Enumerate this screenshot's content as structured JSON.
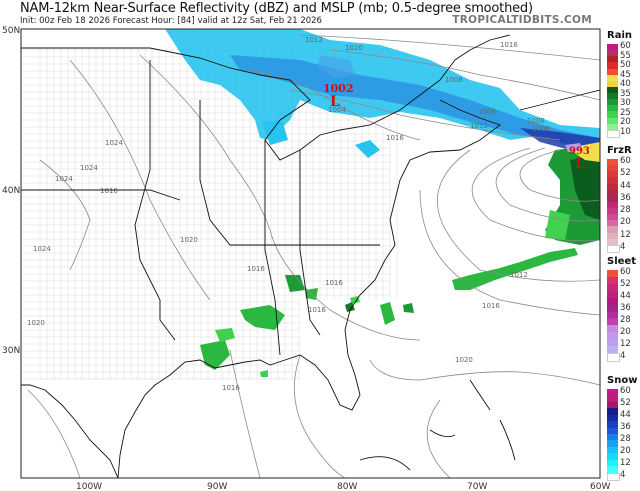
{
  "header": {
    "title": "NAM-12km Near-Surface Reflectivity (dBZ) and MSLP (mb; 0.5-degree smoothed)",
    "subtitle": "Init: 00z Feb 18 2026   Forecast Hour: [84]   valid at 12z Sat, Feb 21 2026",
    "brand": "TROPICALTIDBITS.COM"
  },
  "map": {
    "lat_labels": [
      "50N",
      "40N",
      "30N"
    ],
    "lon_labels": [
      "100W",
      "90W",
      "80W",
      "70W",
      "60W"
    ],
    "lows": [
      {
        "pressure": "1002",
        "symbol": "L"
      },
      {
        "pressure": "993",
        "symbol": "L"
      }
    ],
    "isobar_labels": [
      "1012",
      "1020",
      "1016",
      "1008",
      "1008",
      "1004",
      "1012",
      "1016",
      "1008",
      "1008",
      "1024",
      "1024",
      "1024",
      "1016",
      "1020",
      "1024",
      "1020",
      "1016",
      "1016",
      "1012",
      "1016",
      "1016",
      "1020",
      "1016"
    ]
  },
  "legend": [
    {
      "title": "Rain",
      "labels": [
        "60",
        "55",
        "50",
        "45",
        "40",
        "35",
        "30",
        "25",
        "20",
        "10"
      ],
      "colors": [
        "#c71585",
        "#b0306a",
        "#b22222",
        "#e0282a",
        "#f05030",
        "#f2e04a",
        "#f4d23a",
        "#0b5d1e",
        "#137a2a",
        "#1c9a36",
        "#2bb840",
        "#3fd24e",
        "#5fe86a",
        "#90f090",
        "#ffffff"
      ]
    },
    {
      "title": "FrzR",
      "labels": [
        "60",
        "52",
        "44",
        "36",
        "28",
        "20",
        "12",
        "4"
      ],
      "colors": [
        "#f0503a",
        "#e8443a",
        "#dc3a3a",
        "#d0303a",
        "#c02a3a",
        "#b0284a",
        "#a8285a",
        "#c02878",
        "#c83a88",
        "#d04a98",
        "#d46aa0",
        "#d8a0b0",
        "#dcb0bc",
        "#e0c0c8",
        "#ffffff"
      ]
    },
    {
      "title": "Sleet",
      "labels": [
        "60",
        "52",
        "44",
        "36",
        "28",
        "20",
        "12",
        "4"
      ],
      "colors": [
        "#f05038",
        "#d83070",
        "#c8287a",
        "#c02080",
        "#b01880",
        "#a02888",
        "#b030a0",
        "#c040b0",
        "#c888e0",
        "#c098e8",
        "#b8a0f0",
        "#c0b0f0",
        "#ffffff"
      ]
    },
    {
      "title": "Snow",
      "labels": [
        "60",
        "52",
        "44",
        "36",
        "28",
        "20",
        "12",
        "4"
      ],
      "colors": [
        "#c8188a",
        "#b8207a",
        "#a8186a",
        "#1a1a8a",
        "#1a2aa0",
        "#1a40c0",
        "#1a58d8",
        "#1a80e8",
        "#1aa0f0",
        "#1ac0f8",
        "#1ad8fa",
        "#20f0fc",
        "#40ffff",
        "#ffffff"
      ]
    }
  ]
}
